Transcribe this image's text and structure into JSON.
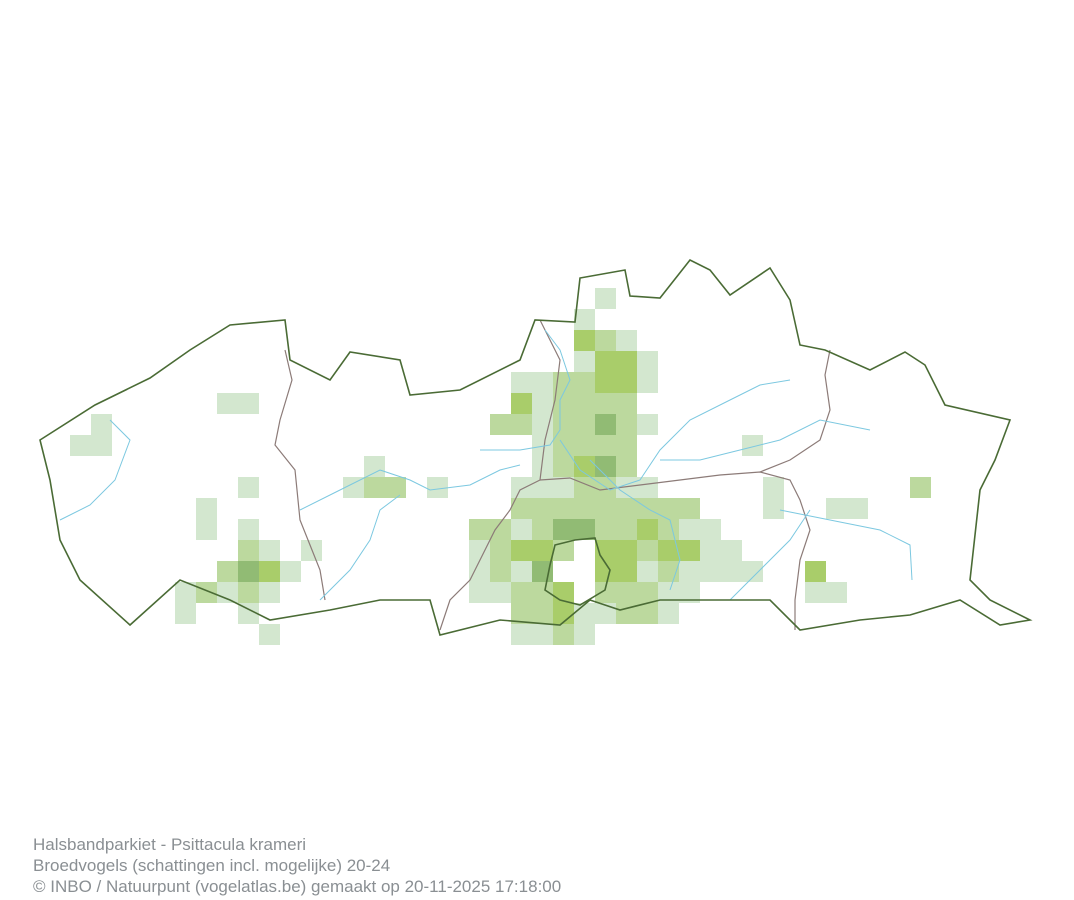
{
  "map": {
    "species": "Halsbandparkiet - Psittacula krameri",
    "region_outline_color": "#4a6b35",
    "province_border_color": "#8c7b78",
    "river_color": "#7cc8e0",
    "abundance_colors": {
      "1": "#d3e7cf",
      "2": "#bcd99e",
      "3": "#a9cd6a",
      "4": "#91bb74"
    }
  },
  "caption": {
    "line1": "Halsbandparkiet - Psittacula krameri",
    "line2": "Broedvogels (schattingen incl. mogelijke) 20-24",
    "line3": "© INBO / Natuurpunt (vogelatlas.be) gemaakt op 20-11-2025 17:18:00"
  }
}
